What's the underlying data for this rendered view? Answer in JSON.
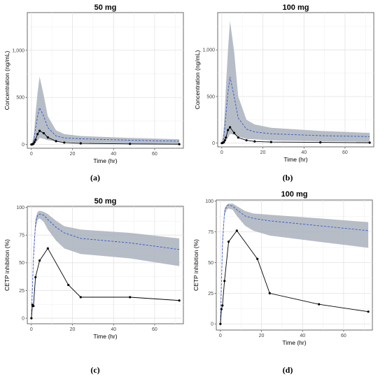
{
  "chart_data": [
    {
      "type": "line",
      "title": "50 mg",
      "caption": "(a)",
      "xlabel": "Time (hr)",
      "ylabel": "Concentration (ng/mL)",
      "xlim": [
        -2,
        74
      ],
      "ylim": [
        -40,
        1400
      ],
      "xticks": [
        0,
        20,
        40,
        60
      ],
      "yticks": [
        0,
        500,
        1000
      ],
      "ytick_labels": [
        "0",
        "500",
        "1,000"
      ],
      "grid": true,
      "band": {
        "x": [
          0,
          0.5,
          1,
          1.5,
          2,
          3,
          4,
          6,
          8,
          12,
          16,
          24,
          48,
          72
        ],
        "lower": [
          0,
          2,
          5,
          10,
          18,
          40,
          70,
          60,
          45,
          35,
          28,
          20,
          10,
          5
        ],
        "upper": [
          0,
          30,
          80,
          180,
          320,
          550,
          720,
          520,
          300,
          150,
          110,
          90,
          70,
          55
        ]
      },
      "series": [
        {
          "style": "dashed",
          "color": "#3355cc",
          "x": [
            0,
            0.5,
            1,
            1.5,
            2,
            3,
            4,
            6,
            8,
            12,
            16,
            24,
            48,
            72
          ],
          "y": [
            0,
            10,
            35,
            90,
            170,
            300,
            390,
            300,
            180,
            90,
            70,
            60,
            45,
            35
          ]
        },
        {
          "style": "solid",
          "color": "#000000",
          "markers": true,
          "x": [
            0,
            0.5,
            1,
            1.5,
            2,
            3,
            4,
            6,
            8,
            12,
            16,
            24,
            48,
            72
          ],
          "y": [
            0,
            2,
            8,
            25,
            50,
            110,
            145,
            120,
            75,
            35,
            20,
            12,
            6,
            3
          ]
        }
      ]
    },
    {
      "type": "line",
      "title": "100 mg",
      "caption": "(b)",
      "xlabel": "Time (hr)",
      "ylabel": "Concentration (ng/mL)",
      "xlim": [
        -2,
        74
      ],
      "ylim": [
        -40,
        1400
      ],
      "xticks": [
        0,
        20,
        40,
        60
      ],
      "yticks": [
        0,
        500,
        1000
      ],
      "ytick_labels": [
        "0",
        "500",
        "1,000"
      ],
      "grid": true,
      "band": {
        "x": [
          0,
          0.5,
          1,
          1.5,
          2,
          3,
          4,
          6,
          8,
          12,
          16,
          24,
          48,
          72
        ],
        "lower": [
          0,
          2,
          5,
          12,
          25,
          60,
          100,
          90,
          70,
          45,
          40,
          30,
          20,
          15
        ],
        "upper": [
          0,
          60,
          180,
          380,
          600,
          1000,
          1310,
          980,
          500,
          250,
          200,
          165,
          130,
          110
        ]
      },
      "series": [
        {
          "style": "dashed",
          "color": "#3355cc",
          "x": [
            0,
            0.5,
            1,
            1.5,
            2,
            3,
            4,
            6,
            8,
            12,
            16,
            24,
            48,
            72
          ],
          "y": [
            0,
            25,
            80,
            180,
            300,
            550,
            710,
            500,
            270,
            150,
            120,
            100,
            80,
            70
          ]
        },
        {
          "style": "solid",
          "color": "#000000",
          "markers": true,
          "x": [
            0,
            0.5,
            1,
            1.5,
            2,
            3,
            4,
            6,
            8,
            12,
            16,
            24,
            48,
            72
          ],
          "y": [
            0,
            3,
            10,
            30,
            60,
            140,
            170,
            110,
            60,
            30,
            18,
            12,
            8,
            5
          ]
        }
      ]
    },
    {
      "type": "line",
      "title": "50 mg",
      "caption": "(c)",
      "xlabel": "Time (hr)",
      "ylabel": "CETP inhibition (%)",
      "xlim": [
        -2,
        74
      ],
      "ylim": [
        -5,
        101
      ],
      "xticks": [
        0,
        20,
        40,
        60
      ],
      "yticks": [
        0,
        25,
        50,
        75,
        100
      ],
      "ytick_labels": [
        "0",
        "25",
        "50",
        "75",
        "100"
      ],
      "grid": true,
      "band": {
        "x": [
          0,
          1,
          2,
          3,
          4,
          6,
          8,
          12,
          16,
          24,
          48,
          72
        ],
        "lower": [
          0,
          50,
          80,
          89,
          90,
          87,
          80,
          70,
          63,
          58,
          54,
          47
        ],
        "upper": [
          0,
          60,
          90,
          96,
          97,
          96,
          94,
          88,
          83,
          80,
          77,
          72
        ]
      },
      "series": [
        {
          "style": "dashed",
          "color": "#3355cc",
          "x": [
            0,
            1,
            2,
            3,
            4,
            6,
            8,
            12,
            16,
            24,
            48,
            72
          ],
          "y": [
            0,
            55,
            85,
            93,
            94,
            93,
            89,
            82,
            77,
            72,
            68,
            62
          ]
        },
        {
          "style": "solid",
          "color": "#000000",
          "markers": true,
          "x": [
            0,
            0.5,
            1,
            2,
            4,
            8,
            18,
            24,
            48,
            72
          ],
          "y": [
            0,
            12,
            11,
            37,
            52,
            63,
            30,
            19,
            19,
            16
          ]
        }
      ]
    },
    {
      "type": "line",
      "title": "100 mg",
      "caption": "(d)",
      "xlabel": "Time (hr)",
      "ylabel": "CETP inhibition (%)",
      "xlim": [
        -2,
        74
      ],
      "ylim": [
        -5,
        101
      ],
      "xticks": [
        0,
        20,
        40,
        60
      ],
      "yticks": [
        0,
        25,
        50,
        75,
        100
      ],
      "ytick_labels": [
        "0",
        "25",
        "50",
        "75",
        "100"
      ],
      "grid": true,
      "band": {
        "x": [
          0,
          1,
          2,
          3,
          4,
          6,
          8,
          12,
          16,
          24,
          48,
          72
        ],
        "lower": [
          0,
          60,
          88,
          93,
          94,
          93,
          88,
          80,
          76,
          72,
          67,
          62
        ],
        "upper": [
          0,
          70,
          94,
          97,
          98,
          98,
          96,
          92,
          90,
          89,
          86,
          83
        ]
      },
      "series": [
        {
          "style": "dashed",
          "color": "#3355cc",
          "x": [
            0,
            1,
            2,
            3,
            4,
            6,
            8,
            12,
            16,
            24,
            48,
            72
          ],
          "y": [
            0,
            65,
            91,
            96,
            97,
            96,
            93,
            88,
            86,
            84,
            80,
            76
          ]
        },
        {
          "style": "solid",
          "color": "#000000",
          "markers": true,
          "x": [
            0,
            0.5,
            1,
            2,
            4,
            8,
            18,
            24,
            48,
            72
          ],
          "y": [
            0,
            12,
            15,
            35,
            67,
            76,
            53,
            25,
            16,
            10
          ]
        }
      ]
    }
  ]
}
